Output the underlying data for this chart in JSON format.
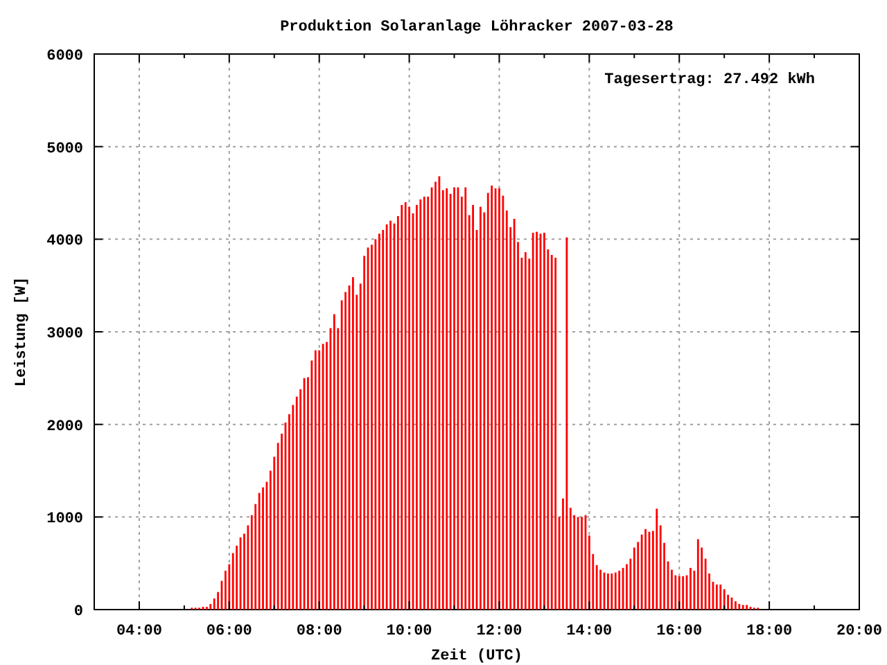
{
  "chart_data": {
    "type": "bar",
    "title": "Produktion Solaranlage Löhracker 2007-03-28",
    "xlabel": "Zeit (UTC)",
    "ylabel": "Leistung [W]",
    "annotations": [
      "Tagesertrag: 27.492 kWh"
    ],
    "x": [
      "2007-03-28T05:10",
      "2007-03-28T05:15",
      "2007-03-28T05:20",
      "2007-03-28T05:25",
      "2007-03-28T05:30",
      "2007-03-28T05:35",
      "2007-03-28T05:40",
      "2007-03-28T05:45",
      "2007-03-28T05:50",
      "2007-03-28T05:55",
      "2007-03-28T06:00",
      "2007-03-28T06:05",
      "2007-03-28T06:10",
      "2007-03-28T06:15",
      "2007-03-28T06:20",
      "2007-03-28T06:25",
      "2007-03-28T06:30",
      "2007-03-28T06:35",
      "2007-03-28T06:40",
      "2007-03-28T06:45",
      "2007-03-28T06:50",
      "2007-03-28T06:55",
      "2007-03-28T07:00",
      "2007-03-28T07:05",
      "2007-03-28T07:10",
      "2007-03-28T07:15",
      "2007-03-28T07:20",
      "2007-03-28T07:25",
      "2007-03-28T07:30",
      "2007-03-28T07:35",
      "2007-03-28T07:40",
      "2007-03-28T07:45",
      "2007-03-28T07:50",
      "2007-03-28T07:55",
      "2007-03-28T08:00",
      "2007-03-28T08:05",
      "2007-03-28T08:10",
      "2007-03-28T08:15",
      "2007-03-28T08:20",
      "2007-03-28T08:25",
      "2007-03-28T08:30",
      "2007-03-28T08:35",
      "2007-03-28T08:40",
      "2007-03-28T08:45",
      "2007-03-28T08:50",
      "2007-03-28T08:55",
      "2007-03-28T09:00",
      "2007-03-28T09:05",
      "2007-03-28T09:10",
      "2007-03-28T09:15",
      "2007-03-28T09:20",
      "2007-03-28T09:25",
      "2007-03-28T09:30",
      "2007-03-28T09:35",
      "2007-03-28T09:40",
      "2007-03-28T09:45",
      "2007-03-28T09:50",
      "2007-03-28T09:55",
      "2007-03-28T10:00",
      "2007-03-28T10:05",
      "2007-03-28T10:10",
      "2007-03-28T10:15",
      "2007-03-28T10:20",
      "2007-03-28T10:25",
      "2007-03-28T10:30",
      "2007-03-28T10:35",
      "2007-03-28T10:40",
      "2007-03-28T10:45",
      "2007-03-28T10:50",
      "2007-03-28T10:55",
      "2007-03-28T11:00",
      "2007-03-28T11:05",
      "2007-03-28T11:10",
      "2007-03-28T11:15",
      "2007-03-28T11:20",
      "2007-03-28T11:25",
      "2007-03-28T11:30",
      "2007-03-28T11:35",
      "2007-03-28T11:40",
      "2007-03-28T11:45",
      "2007-03-28T11:50",
      "2007-03-28T11:55",
      "2007-03-28T12:00",
      "2007-03-28T12:05",
      "2007-03-28T12:10",
      "2007-03-28T12:15",
      "2007-03-28T12:20",
      "2007-03-28T12:25",
      "2007-03-28T12:30",
      "2007-03-28T12:35",
      "2007-03-28T12:40",
      "2007-03-28T12:45",
      "2007-03-28T12:50",
      "2007-03-28T12:55",
      "2007-03-28T13:00",
      "2007-03-28T13:05",
      "2007-03-28T13:10",
      "2007-03-28T13:15",
      "2007-03-28T13:20",
      "2007-03-28T13:25",
      "2007-03-28T13:30",
      "2007-03-28T13:35",
      "2007-03-28T13:40",
      "2007-03-28T13:45",
      "2007-03-28T13:50",
      "2007-03-28T13:55",
      "2007-03-28T14:00",
      "2007-03-28T14:05",
      "2007-03-28T14:10",
      "2007-03-28T14:15",
      "2007-03-28T14:20",
      "2007-03-28T14:25",
      "2007-03-28T14:30",
      "2007-03-28T14:35",
      "2007-03-28T14:40",
      "2007-03-28T14:45",
      "2007-03-28T14:50",
      "2007-03-28T14:55",
      "2007-03-28T15:00",
      "2007-03-28T15:05",
      "2007-03-28T15:10",
      "2007-03-28T15:15",
      "2007-03-28T15:20",
      "2007-03-28T15:25",
      "2007-03-28T15:30",
      "2007-03-28T15:35",
      "2007-03-28T15:40",
      "2007-03-28T15:45",
      "2007-03-28T15:50",
      "2007-03-28T15:55",
      "2007-03-28T16:00",
      "2007-03-28T16:05",
      "2007-03-28T16:10",
      "2007-03-28T16:15",
      "2007-03-28T16:20",
      "2007-03-28T16:25",
      "2007-03-28T16:30",
      "2007-03-28T16:35",
      "2007-03-28T16:40",
      "2007-03-28T16:45",
      "2007-03-28T16:50",
      "2007-03-28T16:55",
      "2007-03-28T17:00",
      "2007-03-28T17:05",
      "2007-03-28T17:10",
      "2007-03-28T17:15",
      "2007-03-28T17:20",
      "2007-03-28T17:25",
      "2007-03-28T17:30",
      "2007-03-28T17:35",
      "2007-03-28T17:40",
      "2007-03-28T17:45"
    ],
    "values": [
      20,
      20,
      20,
      30,
      30,
      60,
      120,
      190,
      310,
      420,
      490,
      610,
      690,
      780,
      820,
      910,
      1020,
      1140,
      1260,
      1320,
      1380,
      1500,
      1650,
      1800,
      1900,
      2020,
      2110,
      2210,
      2300,
      2380,
      2500,
      2510,
      2690,
      2800,
      2800,
      2870,
      2890,
      3040,
      3190,
      3040,
      3340,
      3430,
      3500,
      3590,
      3400,
      3520,
      3820,
      3910,
      3940,
      4000,
      4060,
      4100,
      4160,
      4200,
      4170,
      4250,
      4370,
      4400,
      4350,
      4280,
      4370,
      4430,
      4460,
      4460,
      4560,
      4620,
      4680,
      4530,
      4550,
      4490,
      4560,
      4560,
      4460,
      4560,
      4260,
      4370,
      4100,
      4350,
      4290,
      4500,
      4580,
      4550,
      4550,
      4470,
      4310,
      4130,
      4220,
      3970,
      3800,
      3860,
      3790,
      4070,
      4080,
      4060,
      4070,
      3890,
      3830,
      3800,
      1000,
      1200,
      4020,
      1100,
      1020,
      1000,
      1000,
      1020,
      800,
      600,
      480,
      430,
      400,
      390,
      390,
      400,
      420,
      450,
      490,
      550,
      670,
      730,
      810,
      870,
      840,
      850,
      1090,
      910,
      720,
      520,
      430,
      370,
      360,
      360,
      370,
      450,
      420,
      760,
      670,
      550,
      390,
      300,
      270,
      270,
      220,
      160,
      130,
      90,
      60,
      50,
      50,
      30,
      20,
      20
    ],
    "color": "#ff0000",
    "xlim": [
      "2007-03-28T03:00",
      "2007-03-28T20:00"
    ],
    "xticks": [
      {
        "value": "2007-03-28T04:00",
        "label": "04:00"
      },
      {
        "value": "2007-03-28T05:00",
        "label": null
      },
      {
        "value": "2007-03-28T06:00",
        "label": "06:00"
      },
      {
        "value": "2007-03-28T07:00",
        "label": null
      },
      {
        "value": "2007-03-28T08:00",
        "label": "08:00"
      },
      {
        "value": "2007-03-28T09:00",
        "label": null
      },
      {
        "value": "2007-03-28T10:00",
        "label": "10:00"
      },
      {
        "value": "2007-03-28T11:00",
        "label": null
      },
      {
        "value": "2007-03-28T12:00",
        "label": "12:00"
      },
      {
        "value": "2007-03-28T13:00",
        "label": null
      },
      {
        "value": "2007-03-28T14:00",
        "label": "14:00"
      },
      {
        "value": "2007-03-28T15:00",
        "label": null
      },
      {
        "value": "2007-03-28T16:00",
        "label": "16:00"
      },
      {
        "value": "2007-03-28T17:00",
        "label": null
      },
      {
        "value": "2007-03-28T18:00",
        "label": "18:00"
      },
      {
        "value": "2007-03-28T19:00",
        "label": null
      },
      {
        "value": "2007-03-28T20:00",
        "label": "20:00"
      }
    ],
    "ylim": [
      0,
      6000
    ],
    "yticks": [
      0,
      1000,
      2000,
      3000,
      4000,
      5000,
      6000
    ],
    "grid": true
  }
}
